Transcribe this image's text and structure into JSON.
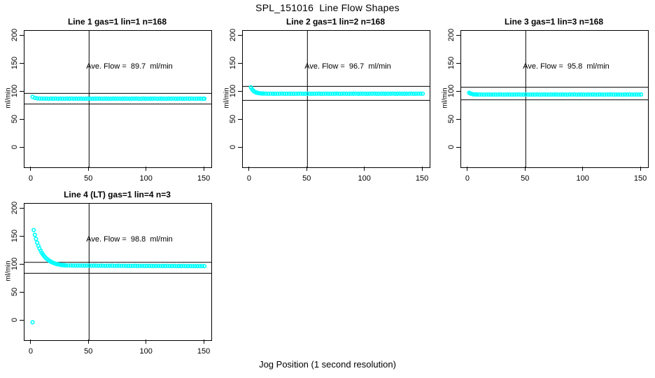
{
  "title": "SPL_151016  Line Flow Shapes",
  "xlabel": "Jog Position (1 second resolution)",
  "colors": {
    "points": "#00FFFF",
    "axis": "#000000",
    "background": "#FFFFFF"
  },
  "axes": {
    "x_ticks": [
      0,
      50,
      100,
      150
    ],
    "y_ticks": [
      0,
      50,
      100,
      150,
      200
    ],
    "x_range": [
      -6,
      156
    ],
    "y_range": [
      -35,
      208.75
    ],
    "grid": false
  },
  "chart_data": [
    {
      "type": "scatter",
      "title": "Line 1 gas=1 lin=1 n=168",
      "annotation": "Ave. Flow =  89.7  ml/min",
      "ave_flow_ml_min": 89.7,
      "ylabel": "ml/min",
      "x_ticks": [
        0,
        50,
        100,
        150
      ],
      "y_ticks": [
        0,
        50,
        100,
        150,
        200
      ],
      "xlim": [
        -6,
        156
      ],
      "ylim": [
        -35,
        208.75
      ],
      "vline_x": 50,
      "ref_line_high": 97,
      "ref_line_low": 78,
      "marker": "open-circle",
      "color": "#00FFFF",
      "points": [
        [
          1,
          90.8
        ],
        [
          3,
          89.0
        ],
        [
          5,
          88.1
        ],
        [
          7,
          87.8
        ],
        [
          9,
          87.7
        ],
        [
          11,
          87.5
        ],
        [
          13,
          87.7
        ],
        [
          15,
          87.4
        ],
        [
          17,
          87.6
        ],
        [
          19,
          87.5
        ],
        [
          21,
          87.7
        ],
        [
          23,
          87.4
        ],
        [
          25,
          87.6
        ],
        [
          27,
          87.5
        ],
        [
          29,
          87.4
        ],
        [
          31,
          87.6
        ],
        [
          33,
          87.5
        ],
        [
          35,
          87.7
        ],
        [
          37,
          87.4
        ],
        [
          39,
          87.6
        ],
        [
          41,
          87.5
        ],
        [
          43,
          87.6
        ],
        [
          45,
          87.4
        ],
        [
          47,
          87.5
        ],
        [
          49,
          87.6
        ],
        [
          51,
          87.5
        ],
        [
          53,
          87.4
        ],
        [
          55,
          87.6
        ],
        [
          57,
          87.5
        ],
        [
          59,
          87.7
        ],
        [
          61,
          87.4
        ],
        [
          63,
          87.5
        ],
        [
          65,
          87.6
        ],
        [
          67,
          87.5
        ],
        [
          69,
          87.4
        ],
        [
          71,
          87.6
        ],
        [
          73,
          87.5
        ],
        [
          75,
          87.7
        ],
        [
          77,
          87.4
        ],
        [
          79,
          87.5
        ],
        [
          81,
          87.6
        ],
        [
          83,
          87.5
        ],
        [
          85,
          87.4
        ],
        [
          87,
          87.6
        ],
        [
          89,
          87.5
        ],
        [
          91,
          87.7
        ],
        [
          93,
          87.4
        ],
        [
          95,
          87.5
        ],
        [
          97,
          87.6
        ],
        [
          99,
          87.5
        ],
        [
          101,
          87.4
        ],
        [
          103,
          87.6
        ],
        [
          105,
          87.5
        ],
        [
          107,
          87.7
        ],
        [
          109,
          87.4
        ],
        [
          111,
          87.5
        ],
        [
          113,
          87.6
        ],
        [
          115,
          87.5
        ],
        [
          117,
          87.4
        ],
        [
          119,
          87.6
        ],
        [
          121,
          87.5
        ],
        [
          123,
          87.7
        ],
        [
          125,
          87.4
        ],
        [
          127,
          87.5
        ],
        [
          129,
          87.6
        ],
        [
          131,
          87.5
        ],
        [
          133,
          87.4
        ],
        [
          135,
          87.6
        ],
        [
          137,
          87.5
        ],
        [
          139,
          87.7
        ],
        [
          141,
          87.4
        ],
        [
          143,
          87.5
        ],
        [
          145,
          87.6
        ],
        [
          147,
          87.5
        ],
        [
          149,
          87.4
        ],
        [
          150,
          87.5
        ]
      ]
    },
    {
      "type": "scatter",
      "title": "Line 2 gas=1 lin=2 n=168",
      "annotation": "Ave. Flow =  96.7  ml/min",
      "ave_flow_ml_min": 96.7,
      "ylabel": "ml/min",
      "x_ticks": [
        0,
        50,
        100,
        150
      ],
      "y_ticks": [
        0,
        50,
        100,
        150,
        200
      ],
      "xlim": [
        -6,
        156
      ],
      "ylim": [
        -35,
        208.75
      ],
      "vline_x": 50,
      "ref_line_high": 109.5,
      "ref_line_low": 84.5,
      "marker": "open-circle",
      "color": "#00FFFF",
      "points": [
        [
          1,
          107.9
        ],
        [
          2,
          104.4
        ],
        [
          3,
          102.0
        ],
        [
          4,
          100.3
        ],
        [
          5,
          99.1
        ],
        [
          6,
          98.3
        ],
        [
          7,
          97.8
        ],
        [
          8,
          97.4
        ],
        [
          9,
          97.1
        ],
        [
          10,
          96.9
        ],
        [
          11,
          96.8
        ],
        [
          12,
          96.7
        ],
        [
          14,
          96.5
        ],
        [
          16,
          96.4
        ],
        [
          18,
          96.5
        ],
        [
          20,
          96.4
        ],
        [
          22,
          96.3
        ],
        [
          24,
          96.5
        ],
        [
          26,
          96.4
        ],
        [
          28,
          96.6
        ],
        [
          30,
          96.3
        ],
        [
          32,
          96.4
        ],
        [
          34,
          96.5
        ],
        [
          36,
          96.4
        ],
        [
          38,
          96.3
        ],
        [
          40,
          96.5
        ],
        [
          42,
          96.4
        ],
        [
          44,
          96.6
        ],
        [
          46,
          96.3
        ],
        [
          48,
          96.4
        ],
        [
          50,
          96.5
        ],
        [
          52,
          96.4
        ],
        [
          54,
          96.3
        ],
        [
          56,
          96.5
        ],
        [
          58,
          96.4
        ],
        [
          60,
          96.6
        ],
        [
          62,
          96.3
        ],
        [
          64,
          96.4
        ],
        [
          66,
          96.5
        ],
        [
          68,
          96.4
        ],
        [
          70,
          96.3
        ],
        [
          72,
          96.5
        ],
        [
          74,
          96.4
        ],
        [
          76,
          96.6
        ],
        [
          78,
          96.3
        ],
        [
          80,
          96.4
        ],
        [
          82,
          96.5
        ],
        [
          84,
          96.4
        ],
        [
          86,
          96.3
        ],
        [
          88,
          96.5
        ],
        [
          90,
          96.4
        ],
        [
          92,
          96.6
        ],
        [
          94,
          96.3
        ],
        [
          96,
          96.4
        ],
        [
          98,
          96.5
        ],
        [
          100,
          96.4
        ],
        [
          102,
          96.3
        ],
        [
          104,
          96.5
        ],
        [
          106,
          96.4
        ],
        [
          108,
          96.6
        ],
        [
          110,
          96.3
        ],
        [
          112,
          96.4
        ],
        [
          114,
          96.5
        ],
        [
          116,
          96.4
        ],
        [
          118,
          96.3
        ],
        [
          120,
          96.5
        ],
        [
          122,
          96.4
        ],
        [
          124,
          96.6
        ],
        [
          126,
          96.3
        ],
        [
          128,
          96.4
        ],
        [
          130,
          96.5
        ],
        [
          132,
          96.4
        ],
        [
          134,
          96.3
        ],
        [
          136,
          96.5
        ],
        [
          138,
          96.4
        ],
        [
          140,
          96.6
        ],
        [
          142,
          96.3
        ],
        [
          144,
          96.4
        ],
        [
          146,
          96.5
        ],
        [
          148,
          96.4
        ],
        [
          150,
          96.5
        ]
      ]
    },
    {
      "type": "scatter",
      "title": "Line 3 gas=1 lin=3 n=168",
      "annotation": "Ave. Flow =  95.8  ml/min",
      "ave_flow_ml_min": 95.8,
      "ylabel": "ml/min",
      "x_ticks": [
        0,
        50,
        100,
        150
      ],
      "y_ticks": [
        0,
        50,
        100,
        150,
        200
      ],
      "xlim": [
        -6,
        156
      ],
      "ylim": [
        -35,
        208.75
      ],
      "vline_x": 50,
      "ref_line_high": 108,
      "ref_line_low": 85.5,
      "marker": "open-circle",
      "color": "#00FFFF",
      "points": [
        [
          1,
          98.1
        ],
        [
          2,
          96.8
        ],
        [
          3,
          96.1
        ],
        [
          4,
          95.6
        ],
        [
          5,
          95.3
        ],
        [
          6,
          95.2
        ],
        [
          7,
          95.1
        ],
        [
          8,
          95.0
        ],
        [
          10,
          94.9
        ],
        [
          12,
          95.0
        ],
        [
          14,
          94.8
        ],
        [
          16,
          94.9
        ],
        [
          18,
          95.0
        ],
        [
          20,
          94.9
        ],
        [
          22,
          94.8
        ],
        [
          24,
          95.0
        ],
        [
          26,
          94.9
        ],
        [
          28,
          95.1
        ],
        [
          30,
          94.8
        ],
        [
          32,
          94.9
        ],
        [
          34,
          95.0
        ],
        [
          36,
          94.9
        ],
        [
          38,
          94.8
        ],
        [
          40,
          95.0
        ],
        [
          42,
          94.9
        ],
        [
          44,
          95.1
        ],
        [
          46,
          94.8
        ],
        [
          48,
          94.9
        ],
        [
          50,
          95.0
        ],
        [
          52,
          94.9
        ],
        [
          54,
          94.8
        ],
        [
          56,
          95.0
        ],
        [
          58,
          94.9
        ],
        [
          60,
          95.1
        ],
        [
          62,
          94.8
        ],
        [
          64,
          94.9
        ],
        [
          66,
          95.0
        ],
        [
          68,
          94.9
        ],
        [
          70,
          94.8
        ],
        [
          72,
          95.0
        ],
        [
          74,
          94.9
        ],
        [
          76,
          95.1
        ],
        [
          78,
          94.8
        ],
        [
          80,
          94.9
        ],
        [
          82,
          95.0
        ],
        [
          84,
          94.9
        ],
        [
          86,
          94.8
        ],
        [
          88,
          95.0
        ],
        [
          90,
          94.9
        ],
        [
          92,
          95.1
        ],
        [
          94,
          94.8
        ],
        [
          96,
          94.9
        ],
        [
          98,
          95.0
        ],
        [
          100,
          94.9
        ],
        [
          102,
          94.8
        ],
        [
          104,
          95.0
        ],
        [
          106,
          94.9
        ],
        [
          108,
          95.1
        ],
        [
          110,
          94.8
        ],
        [
          112,
          94.9
        ],
        [
          114,
          95.0
        ],
        [
          116,
          94.9
        ],
        [
          118,
          94.8
        ],
        [
          120,
          95.0
        ],
        [
          122,
          94.9
        ],
        [
          124,
          95.1
        ],
        [
          126,
          94.8
        ],
        [
          128,
          94.9
        ],
        [
          130,
          95.0
        ],
        [
          132,
          94.9
        ],
        [
          134,
          94.8
        ],
        [
          136,
          95.0
        ],
        [
          138,
          94.9
        ],
        [
          140,
          95.1
        ],
        [
          142,
          94.8
        ],
        [
          144,
          94.9
        ],
        [
          146,
          95.0
        ],
        [
          148,
          94.9
        ],
        [
          150,
          95.0
        ]
      ]
    },
    {
      "type": "scatter",
      "title": "Line 4 (LT) gas=1 lin=4 n=3",
      "annotation": "Ave. Flow =  98.8  ml/min",
      "ave_flow_ml_min": 98.8,
      "ylabel": "ml/min",
      "x_ticks": [
        0,
        50,
        100,
        150
      ],
      "y_ticks": [
        0,
        50,
        100,
        150,
        200
      ],
      "xlim": [
        -6,
        156
      ],
      "ylim": [
        -35,
        208.75
      ],
      "vline_x": 50,
      "ref_line_high": 104,
      "ref_line_low": 84.5,
      "marker": "open-circle",
      "color": "#00FFFF",
      "points": [
        [
          1,
          -3
        ],
        [
          2,
          161.6
        ],
        [
          3,
          153.1
        ],
        [
          4,
          145.7
        ],
        [
          5,
          139.3
        ],
        [
          6,
          133.7
        ],
        [
          7,
          128.9
        ],
        [
          8,
          124.8
        ],
        [
          9,
          121.1
        ],
        [
          10,
          118.0
        ],
        [
          11,
          115.3
        ],
        [
          12,
          113.0
        ],
        [
          13,
          110.9
        ],
        [
          14,
          109.1
        ],
        [
          15,
          107.6
        ],
        [
          16,
          106.2
        ],
        [
          17,
          105.0
        ],
        [
          18,
          104.0
        ],
        [
          19,
          103.1
        ],
        [
          20,
          102.3
        ],
        [
          21,
          101.6
        ],
        [
          22,
          101.0
        ],
        [
          23,
          100.5
        ],
        [
          24,
          100.1
        ],
        [
          25,
          99.7
        ],
        [
          26,
          99.4
        ],
        [
          27,
          99.1
        ],
        [
          28,
          98.9
        ],
        [
          29,
          98.7
        ],
        [
          30,
          98.5
        ],
        [
          32,
          98.4
        ],
        [
          34,
          98.5
        ],
        [
          36,
          98.3
        ],
        [
          38,
          98.4
        ],
        [
          40,
          98.2
        ],
        [
          42,
          98.4
        ],
        [
          44,
          98.3
        ],
        [
          46,
          98.1
        ],
        [
          48,
          98.3
        ],
        [
          50,
          98.2
        ],
        [
          52,
          98.0
        ],
        [
          54,
          98.2
        ],
        [
          56,
          98.1
        ],
        [
          58,
          97.9
        ],
        [
          60,
          98.1
        ],
        [
          62,
          98.0
        ],
        [
          64,
          97.8
        ],
        [
          66,
          98.0
        ],
        [
          68,
          97.9
        ],
        [
          70,
          98.1
        ],
        [
          72,
          97.8
        ],
        [
          74,
          97.9
        ],
        [
          76,
          98.0
        ],
        [
          78,
          97.7
        ],
        [
          80,
          97.9
        ],
        [
          82,
          97.8
        ],
        [
          84,
          97.6
        ],
        [
          86,
          97.8
        ],
        [
          88,
          97.7
        ],
        [
          90,
          97.9
        ],
        [
          92,
          97.6
        ],
        [
          94,
          97.7
        ],
        [
          96,
          97.8
        ],
        [
          98,
          97.5
        ],
        [
          100,
          97.7
        ],
        [
          102,
          97.6
        ],
        [
          104,
          97.8
        ],
        [
          106,
          97.5
        ],
        [
          108,
          97.6
        ],
        [
          110,
          97.7
        ],
        [
          112,
          97.4
        ],
        [
          114,
          97.6
        ],
        [
          116,
          97.5
        ],
        [
          118,
          97.7
        ],
        [
          120,
          97.4
        ],
        [
          122,
          97.5
        ],
        [
          124,
          97.6
        ],
        [
          126,
          97.3
        ],
        [
          128,
          97.5
        ],
        [
          130,
          97.4
        ],
        [
          132,
          97.6
        ],
        [
          134,
          97.3
        ],
        [
          136,
          97.4
        ],
        [
          138,
          97.5
        ],
        [
          140,
          97.2
        ],
        [
          142,
          97.4
        ],
        [
          144,
          97.3
        ],
        [
          146,
          97.5
        ],
        [
          148,
          97.2
        ],
        [
          150,
          97.3
        ]
      ]
    }
  ]
}
